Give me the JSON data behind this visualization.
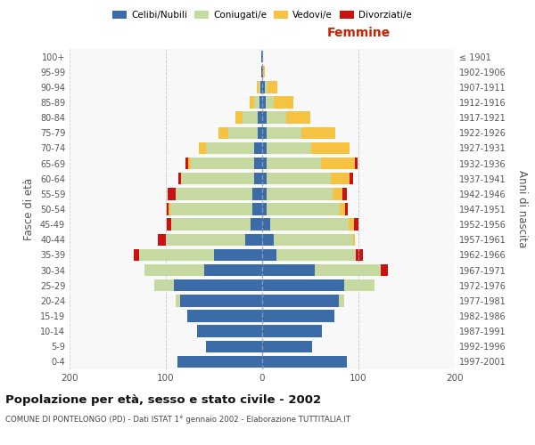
{
  "age_groups": [
    "0-4",
    "5-9",
    "10-14",
    "15-19",
    "20-24",
    "25-29",
    "30-34",
    "35-39",
    "40-44",
    "45-49",
    "50-54",
    "55-59",
    "60-64",
    "65-69",
    "70-74",
    "75-79",
    "80-84",
    "85-89",
    "90-94",
    "95-99",
    "100+"
  ],
  "birth_years": [
    "1997-2001",
    "1992-1996",
    "1987-1991",
    "1982-1986",
    "1977-1981",
    "1972-1976",
    "1967-1971",
    "1962-1966",
    "1957-1961",
    "1952-1956",
    "1947-1951",
    "1942-1946",
    "1937-1941",
    "1932-1936",
    "1927-1931",
    "1922-1926",
    "1917-1921",
    "1912-1916",
    "1907-1911",
    "1902-1906",
    "≤ 1901"
  ],
  "colors": {
    "celibi": "#3b6ca8",
    "coniugati": "#c5d9a0",
    "vedovi": "#f5c242",
    "divorziati": "#cc1111"
  },
  "males": {
    "celibi": [
      88,
      58,
      68,
      78,
      85,
      92,
      60,
      50,
      18,
      12,
      10,
      10,
      8,
      8,
      8,
      5,
      5,
      3,
      2,
      1,
      1
    ],
    "coniugati": [
      0,
      0,
      0,
      0,
      5,
      20,
      62,
      78,
      82,
      82,
      85,
      80,
      76,
      66,
      50,
      30,
      15,
      5,
      2,
      0,
      0
    ],
    "vedovi": [
      0,
      0,
      0,
      0,
      0,
      0,
      0,
      0,
      0,
      0,
      2,
      0,
      0,
      3,
      8,
      10,
      8,
      5,
      2,
      0,
      0
    ],
    "divorziati": [
      0,
      0,
      0,
      0,
      0,
      0,
      0,
      5,
      8,
      5,
      2,
      8,
      3,
      3,
      0,
      0,
      0,
      0,
      0,
      0,
      0
    ]
  },
  "females": {
    "nubili": [
      88,
      52,
      62,
      75,
      80,
      85,
      55,
      15,
      12,
      8,
      5,
      5,
      5,
      5,
      5,
      5,
      5,
      4,
      3,
      1,
      1
    ],
    "coniugate": [
      0,
      0,
      0,
      0,
      5,
      32,
      68,
      82,
      82,
      82,
      76,
      68,
      66,
      56,
      46,
      36,
      20,
      8,
      3,
      0,
      0
    ],
    "vedove": [
      0,
      0,
      0,
      0,
      0,
      0,
      0,
      0,
      2,
      5,
      5,
      10,
      20,
      35,
      40,
      35,
      25,
      20,
      10,
      2,
      0
    ],
    "divorziate": [
      0,
      0,
      0,
      0,
      0,
      0,
      8,
      8,
      0,
      5,
      3,
      5,
      3,
      3,
      0,
      0,
      0,
      0,
      0,
      0,
      0
    ]
  },
  "title": "Popolazione per età, sesso e stato civile - 2002",
  "subtitle": "COMUNE DI PONTELONGO (PD) - Dati ISTAT 1° gennaio 2002 - Elaborazione TUTTITALIA.IT",
  "ylabel_left": "Fasce di età",
  "ylabel_right": "Anni di nascita",
  "xlabel_right": "Femmine",
  "xlim": 200,
  "bg_color": "#f8f8f8",
  "grid_color": "#cccccc"
}
